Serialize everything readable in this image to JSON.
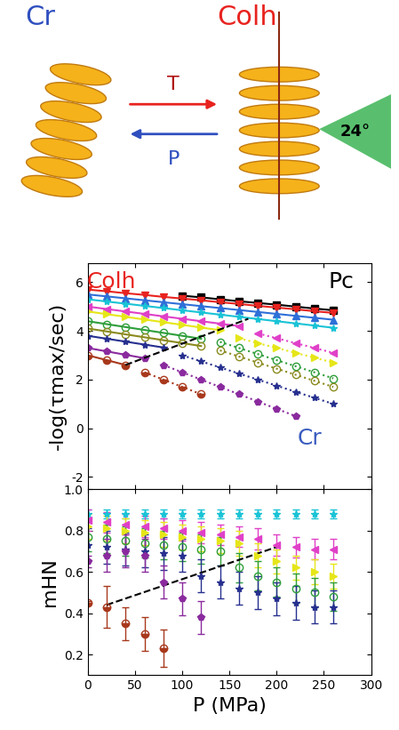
{
  "diagram": {
    "left_label": "Cr",
    "right_label": "Colh",
    "forward_label": "T",
    "backward_label": "P",
    "angle_label": "24°"
  },
  "chart_data": [
    {
      "type": "line",
      "ylabel": "-log(τmax/sec)",
      "xlim": [
        0,
        300
      ],
      "xticks": [
        0,
        50,
        100,
        150,
        200,
        250,
        300
      ],
      "ylim": [
        -2.5,
        6.8
      ],
      "yticks": [
        -2,
        0,
        2,
        4,
        6
      ],
      "tick_labels": "y",
      "annotations": [
        {
          "text": "Colh",
          "x": 25,
          "y": 6.0,
          "color": "#e8231f"
        },
        {
          "text": "Pc",
          "x": 268,
          "y": 6.0,
          "color": "#000000"
        },
        {
          "text": "Cr",
          "x": 235,
          "y": -0.4,
          "color": "#3a5bbf"
        }
      ],
      "series": [
        {
          "color": "#000000",
          "marker": "square",
          "line_style": "solid",
          "x": [
            100,
            120,
            140,
            160,
            180,
            200,
            220,
            240,
            260
          ],
          "values": [
            5.45,
            5.38,
            5.3,
            5.22,
            5.15,
            5.08,
            5.0,
            4.92,
            4.85
          ]
        },
        {
          "color": "#e8231f",
          "marker": "triangle_down",
          "line_style": "solid",
          "x": [
            0,
            20,
            40,
            60,
            80,
            100,
            120,
            140,
            160,
            180,
            200,
            220,
            240,
            260
          ],
          "values": [
            5.7,
            5.63,
            5.55,
            5.48,
            5.4,
            5.33,
            5.26,
            5.18,
            5.11,
            5.03,
            4.96,
            4.89,
            4.81,
            4.74
          ]
        },
        {
          "color": "#2f6fd8",
          "marker": "triangle_up",
          "line_style": "solid",
          "x": [
            0,
            20,
            40,
            60,
            80,
            100,
            120,
            140,
            160,
            180,
            200,
            220,
            240,
            260
          ],
          "values": [
            5.5,
            5.42,
            5.34,
            5.26,
            5.18,
            5.1,
            5.02,
            4.94,
            4.86,
            4.78,
            4.7,
            4.62,
            4.54,
            4.46
          ]
        },
        {
          "color": "#19c3d6",
          "marker": "star",
          "line_style": "solid",
          "x": [
            0,
            20,
            40,
            60,
            80,
            100,
            120,
            140,
            160,
            180,
            200,
            220,
            240,
            260
          ],
          "values": [
            5.3,
            5.21,
            5.12,
            5.03,
            4.94,
            4.85,
            4.76,
            4.67,
            4.58,
            4.49,
            4.4,
            4.31,
            4.22,
            4.13
          ]
        },
        {
          "color": "#e040c8",
          "marker": "triangle_left",
          "line_style": "solid",
          "x": [
            0,
            20,
            40,
            60,
            80,
            100,
            120,
            140,
            160
          ],
          "values": [
            5.0,
            4.9,
            4.8,
            4.7,
            4.6,
            4.5,
            4.4,
            4.3,
            4.2
          ]
        },
        {
          "color": "#e040c8",
          "marker": "triangle_left",
          "line_style": "dotted",
          "x": [
            180,
            200,
            220,
            240,
            260
          ],
          "values": [
            3.9,
            3.7,
            3.5,
            3.3,
            3.1
          ]
        },
        {
          "color": "#e6e619",
          "marker": "triangle_right",
          "line_style": "solid",
          "x": [
            0,
            20,
            40,
            60,
            80,
            100,
            120,
            140
          ],
          "values": [
            4.8,
            4.69,
            4.58,
            4.47,
            4.36,
            4.25,
            4.14,
            4.03
          ]
        },
        {
          "color": "#e6e619",
          "marker": "triangle_right",
          "line_style": "dotted",
          "x": [
            160,
            180,
            200,
            220,
            240,
            260
          ],
          "values": [
            3.7,
            3.5,
            3.3,
            3.1,
            2.9,
            2.7
          ]
        },
        {
          "color": "#2e9e3a",
          "marker": "open_circle",
          "line_style": "solid",
          "x": [
            0,
            20,
            40,
            60,
            80,
            100,
            120
          ],
          "values": [
            4.4,
            4.28,
            4.16,
            4.04,
            3.92,
            3.8,
            3.68
          ]
        },
        {
          "color": "#2e9e3a",
          "marker": "open_circle",
          "line_style": "dotted",
          "x": [
            140,
            160,
            180,
            200,
            220,
            240,
            260
          ],
          "values": [
            3.55,
            3.3,
            3.05,
            2.8,
            2.55,
            2.3,
            2.05
          ]
        },
        {
          "color": "#8a8a1e",
          "marker": "open_circle",
          "line_style": "solid",
          "x": [
            0,
            20,
            40,
            60,
            80,
            100,
            120
          ],
          "values": [
            4.1,
            3.98,
            3.86,
            3.74,
            3.62,
            3.5,
            3.38
          ]
        },
        {
          "color": "#8a8a1e",
          "marker": "open_circle",
          "line_style": "dotted",
          "x": [
            140,
            160,
            180,
            200,
            220,
            240,
            260
          ],
          "values": [
            3.2,
            2.95,
            2.7,
            2.45,
            2.2,
            1.95,
            1.7
          ]
        },
        {
          "color": "#27308f",
          "marker": "star",
          "line_style": "solid",
          "x": [
            0,
            20,
            40,
            60,
            80
          ],
          "values": [
            3.8,
            3.68,
            3.56,
            3.44,
            3.32
          ]
        },
        {
          "color": "#27308f",
          "marker": "star",
          "line_style": "dotted",
          "x": [
            100,
            120,
            140,
            160,
            180,
            200,
            220,
            240,
            260
          ],
          "values": [
            3.0,
            2.75,
            2.5,
            2.25,
            2.0,
            1.75,
            1.5,
            1.25,
            1.0
          ]
        },
        {
          "color": "#8a2a9e",
          "marker": "pentagon",
          "line_style": "solid",
          "x": [
            0,
            20,
            40,
            60
          ],
          "values": [
            3.3,
            3.16,
            3.02,
            2.88
          ]
        },
        {
          "color": "#8a2a9e",
          "marker": "pentagon",
          "line_style": "dotted",
          "x": [
            80,
            100,
            120,
            140,
            160,
            180,
            200,
            220
          ],
          "values": [
            2.6,
            2.3,
            2.0,
            1.7,
            1.4,
            1.1,
            0.8,
            0.5
          ]
        },
        {
          "color": "#a8381c",
          "marker": "half_circle",
          "line_style": "solid",
          "x": [
            0,
            20,
            40
          ],
          "values": [
            3.0,
            2.8,
            2.6
          ]
        },
        {
          "color": "#a8381c",
          "marker": "half_circle",
          "line_style": "dotted",
          "x": [
            60,
            80,
            100,
            120
          ],
          "values": [
            2.3,
            2.0,
            1.7,
            1.4
          ]
        },
        {
          "color": "#000000",
          "marker": "none",
          "line_style": "dashed",
          "x": [
            40,
            170
          ],
          "values": [
            2.6,
            4.5
          ]
        }
      ]
    },
    {
      "type": "line",
      "xlabel": "P (MPa)",
      "ylabel": "mHN",
      "xlim": [
        0,
        300
      ],
      "xticks": [
        0,
        50,
        100,
        150,
        200,
        250,
        300
      ],
      "ylim": [
        0.1,
        1.0
      ],
      "yticks": [
        0.2,
        0.4,
        0.6,
        0.8,
        1.0
      ],
      "series": [
        {
          "color": "#19c3d6",
          "marker": "star",
          "line_style": "none",
          "x": [
            0,
            20,
            40,
            60,
            80,
            100,
            120,
            140,
            160,
            180,
            200,
            220,
            240,
            260
          ],
          "values": [
            0.88,
            0.88,
            0.88,
            0.88,
            0.88,
            0.88,
            0.88,
            0.88,
            0.88,
            0.88,
            0.88,
            0.88,
            0.88,
            0.88
          ],
          "errors": [
            0.02,
            0.02,
            0.02,
            0.02,
            0.02,
            0.02,
            0.02,
            0.02,
            0.02,
            0.02,
            0.02,
            0.02,
            0.02,
            0.02
          ]
        },
        {
          "color": "#e040c8",
          "marker": "triangle_left",
          "line_style": "none",
          "x": [
            0,
            20,
            40,
            60,
            80,
            100,
            120,
            140,
            160,
            180,
            200,
            220,
            240,
            260
          ],
          "values": [
            0.85,
            0.84,
            0.83,
            0.82,
            0.81,
            0.8,
            0.79,
            0.78,
            0.77,
            0.76,
            0.73,
            0.72,
            0.71,
            0.71
          ],
          "errors": [
            0.05,
            0.05,
            0.05,
            0.05,
            0.05,
            0.05,
            0.05,
            0.05,
            0.05,
            0.05,
            0.05,
            0.05,
            0.05,
            0.05
          ]
        },
        {
          "color": "#e6e619",
          "marker": "triangle_right",
          "line_style": "none",
          "x": [
            0,
            20,
            40,
            60,
            80,
            100,
            120,
            140,
            160,
            180,
            200,
            220,
            240,
            260
          ],
          "values": [
            0.82,
            0.81,
            0.8,
            0.79,
            0.78,
            0.77,
            0.76,
            0.75,
            0.74,
            0.68,
            0.65,
            0.62,
            0.6,
            0.58
          ],
          "errors": [
            0.06,
            0.06,
            0.06,
            0.06,
            0.06,
            0.06,
            0.06,
            0.06,
            0.06,
            0.06,
            0.06,
            0.06,
            0.06,
            0.06
          ]
        },
        {
          "color": "#2e9e3a",
          "marker": "open_circle",
          "line_style": "none",
          "x": [
            0,
            20,
            40,
            60,
            80,
            100,
            120,
            140,
            160,
            180,
            200,
            220,
            240,
            260
          ],
          "values": [
            0.77,
            0.76,
            0.75,
            0.74,
            0.73,
            0.72,
            0.71,
            0.7,
            0.62,
            0.58,
            0.55,
            0.52,
            0.5,
            0.48
          ],
          "errors": [
            0.07,
            0.07,
            0.07,
            0.07,
            0.07,
            0.07,
            0.07,
            0.07,
            0.07,
            0.07,
            0.07,
            0.07,
            0.07,
            0.07
          ]
        },
        {
          "color": "#27308f",
          "marker": "star",
          "line_style": "none",
          "x": [
            0,
            20,
            40,
            60,
            80,
            100,
            120,
            140,
            160,
            180,
            200,
            220,
            240,
            260
          ],
          "values": [
            0.73,
            0.72,
            0.71,
            0.7,
            0.69,
            0.68,
            0.58,
            0.55,
            0.52,
            0.5,
            0.47,
            0.45,
            0.43,
            0.43
          ],
          "errors": [
            0.08,
            0.08,
            0.08,
            0.08,
            0.08,
            0.08,
            0.08,
            0.08,
            0.08,
            0.08,
            0.08,
            0.08,
            0.08,
            0.08
          ]
        },
        {
          "color": "#8a2a9e",
          "marker": "pentagon",
          "line_style": "none",
          "x": [
            0,
            20,
            40,
            60,
            80,
            100,
            120
          ],
          "values": [
            0.65,
            0.68,
            0.7,
            0.68,
            0.55,
            0.47,
            0.38
          ],
          "errors": [
            0.03,
            0.08,
            0.08,
            0.08,
            0.08,
            0.08,
            0.08
          ]
        },
        {
          "color": "#a8381c",
          "marker": "half_circle",
          "line_style": "none",
          "x": [
            0,
            20,
            40,
            60,
            80
          ],
          "values": [
            0.45,
            0.43,
            0.35,
            0.3,
            0.23
          ],
          "errors": [
            0.01,
            0.1,
            0.08,
            0.08,
            0.09
          ]
        },
        {
          "color": "#000000",
          "marker": "none",
          "line_style": "dashed",
          "x": [
            20,
            200
          ],
          "values": [
            0.44,
            0.72
          ]
        }
      ]
    }
  ]
}
